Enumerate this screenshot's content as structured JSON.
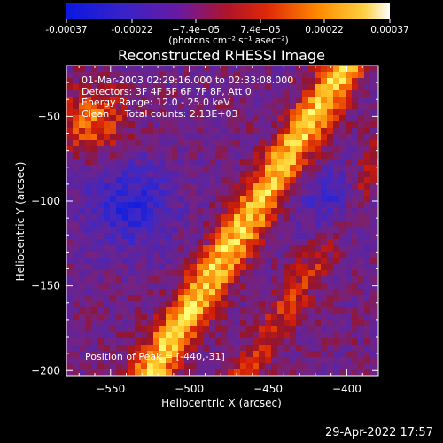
{
  "colorbar": {
    "ticks": [
      "-0.00037",
      "-0.00022",
      "−7.4e−05",
      "7.4e−05",
      "0.00022",
      "0.00037"
    ],
    "tick_values": [
      -0.00037,
      -0.00022,
      -7.4e-05,
      7.4e-05,
      0.00022,
      0.00037
    ],
    "range": [
      -0.00037,
      0.00037
    ],
    "units": "(photons cm⁻² s⁻¹ asec⁻²)"
  },
  "info": {
    "line1": "01-Mar-2003 02:29:16.000 to 02:33:08.000",
    "line2": "Detectors: 3F 4F 5F 6F 7F 8F, Att 0",
    "line3": "Energy Range: 12.0 - 25.0 keV",
    "line4": "Clean     Total counts: 2.13E+03",
    "peak": "Position of Peak = [-440,-31]"
  },
  "timestamp": "29-Apr-2022 17:57",
  "colors": {
    "background": "#000000",
    "low": "#0a18d8",
    "mid": "#5a2a9c",
    "high": "#ffff60"
  },
  "chart_data": {
    "type": "heatmap",
    "title": "Reconstructed RHESSI Image",
    "xlabel": "Heliocentric X (arcsec)",
    "ylabel": "Heliocentric Y (arcsec)",
    "xlim": [
      -578,
      -380
    ],
    "ylim": [
      -203,
      -20
    ],
    "xticks": [
      -550,
      -500,
      -450,
      -400
    ],
    "yticks": [
      -50,
      -100,
      -150,
      -200
    ],
    "xtick_labels": [
      "−550",
      "−500",
      "−450",
      "−400"
    ],
    "ytick_labels": [
      "−50",
      "−100",
      "−150",
      "−200"
    ],
    "peak_position": [
      -440,
      -31
    ],
    "colormap": "blue-purple-red-yellow",
    "value_range": [
      -0.00037,
      0.00037
    ]
  }
}
